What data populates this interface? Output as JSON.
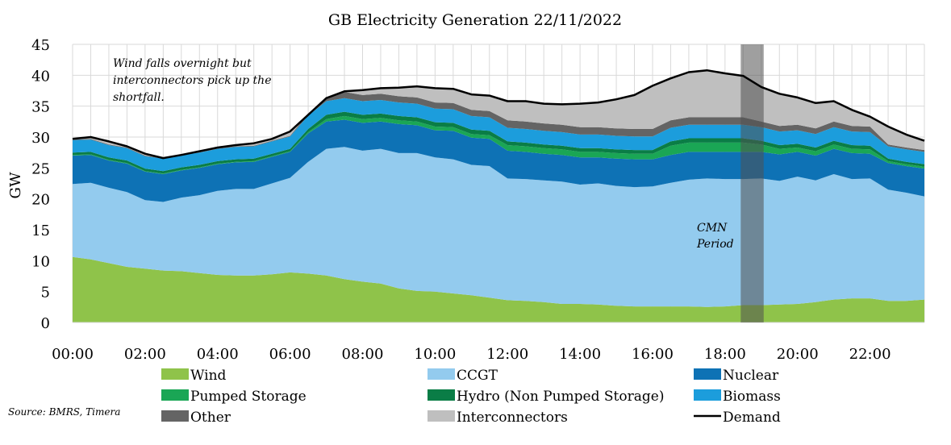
{
  "chart_data": {
    "type": "area",
    "stacked": true,
    "title": "GB Electricity Generation 22/11/2022",
    "xlabel": "",
    "ylabel": "GW",
    "ylim": [
      0,
      45
    ],
    "yticks": [
      0,
      5,
      10,
      15,
      20,
      25,
      30,
      35,
      40,
      45
    ],
    "xticks": [
      "00:00",
      "02:00",
      "04:00",
      "06:00",
      "08:00",
      "10:00",
      "12:00",
      "14:00",
      "16:00",
      "18:00",
      "20:00",
      "22:00"
    ],
    "grid": true,
    "legend_position": "bottom",
    "x": [
      "00:00",
      "00:30",
      "01:00",
      "01:30",
      "02:00",
      "02:30",
      "03:00",
      "03:30",
      "04:00",
      "04:30",
      "05:00",
      "05:30",
      "06:00",
      "06:30",
      "07:00",
      "07:30",
      "08:00",
      "08:30",
      "09:00",
      "09:30",
      "10:00",
      "10:30",
      "11:00",
      "11:30",
      "12:00",
      "12:30",
      "13:00",
      "13:30",
      "14:00",
      "14:30",
      "15:00",
      "15:30",
      "16:00",
      "16:30",
      "17:00",
      "17:30",
      "18:00",
      "18:30",
      "19:00",
      "19:30",
      "20:00",
      "20:30",
      "21:00",
      "21:30",
      "22:00",
      "22:30",
      "23:00",
      "23:30"
    ],
    "series": [
      {
        "name": "Wind",
        "color": "#8fc34a",
        "values": [
          10.6,
          10.2,
          9.6,
          9.0,
          8.7,
          8.4,
          8.3,
          8.0,
          7.7,
          7.6,
          7.6,
          7.8,
          8.1,
          7.9,
          7.6,
          7.0,
          6.6,
          6.3,
          5.5,
          5.1,
          5.0,
          4.7,
          4.4,
          4.0,
          3.6,
          3.5,
          3.3,
          3.0,
          3.0,
          2.9,
          2.7,
          2.6,
          2.6,
          2.6,
          2.6,
          2.5,
          2.6,
          2.8,
          2.8,
          2.9,
          3.0,
          3.3,
          3.7,
          3.9,
          3.9,
          3.5,
          3.5,
          3.7
        ]
      },
      {
        "name": "CCGT",
        "color": "#93cbee",
        "values": [
          11.8,
          12.4,
          12.2,
          12.1,
          11.1,
          11.1,
          11.9,
          12.6,
          13.6,
          14.0,
          14.0,
          14.7,
          15.3,
          18.1,
          20.5,
          21.4,
          21.2,
          21.8,
          21.9,
          22.3,
          21.7,
          21.7,
          21.1,
          21.3,
          19.7,
          19.7,
          19.7,
          19.8,
          19.3,
          19.6,
          19.4,
          19.3,
          19.4,
          20.0,
          20.5,
          20.8,
          20.6,
          20.4,
          20.5,
          20.0,
          20.6,
          19.7,
          20.3,
          19.3,
          19.4,
          18.0,
          17.5,
          16.7
        ]
      },
      {
        "name": "Nuclear",
        "color": "#0e72b5",
        "values": [
          4.6,
          4.5,
          4.4,
          4.6,
          4.6,
          4.5,
          4.4,
          4.4,
          4.3,
          4.3,
          4.4,
          4.3,
          4.2,
          4.6,
          4.4,
          4.4,
          4.5,
          4.4,
          4.7,
          4.5,
          4.4,
          4.6,
          4.4,
          4.4,
          4.5,
          4.4,
          4.3,
          4.3,
          4.4,
          4.2,
          4.4,
          4.5,
          4.4,
          4.5,
          4.5,
          4.3,
          4.4,
          4.4,
          4.3,
          4.3,
          4.0,
          4.0,
          4.1,
          4.2,
          4.0,
          4.3,
          4.3,
          4.5
        ]
      },
      {
        "name": "Pumped Storage",
        "color": "#1aa655",
        "values": [
          0.1,
          0.1,
          0.1,
          0.1,
          0.1,
          0.1,
          0.1,
          0.1,
          0.1,
          0.1,
          0.1,
          0.1,
          0.1,
          0.2,
          0.4,
          0.6,
          0.6,
          0.6,
          0.6,
          0.6,
          0.6,
          0.6,
          0.6,
          0.6,
          0.9,
          0.9,
          0.9,
          0.9,
          0.9,
          0.9,
          0.9,
          0.9,
          0.9,
          1.5,
          1.5,
          1.5,
          1.5,
          1.5,
          1.2,
          0.9,
          0.7,
          0.7,
          0.7,
          0.7,
          0.7,
          0.3,
          0.3,
          0.3
        ]
      },
      {
        "name": "Hydro (Non Pumped Storage)",
        "color": "#0a7d46",
        "values": [
          0.4,
          0.4,
          0.4,
          0.4,
          0.4,
          0.4,
          0.4,
          0.4,
          0.4,
          0.4,
          0.4,
          0.4,
          0.4,
          0.5,
          0.7,
          0.7,
          0.7,
          0.7,
          0.7,
          0.7,
          0.7,
          0.7,
          0.7,
          0.7,
          0.6,
          0.6,
          0.6,
          0.6,
          0.6,
          0.6,
          0.6,
          0.6,
          0.6,
          0.7,
          0.7,
          0.7,
          0.7,
          0.7,
          0.6,
          0.6,
          0.6,
          0.6,
          0.6,
          0.6,
          0.6,
          0.4,
          0.4,
          0.4
        ]
      },
      {
        "name": "Biomass",
        "color": "#1c9ddc",
        "values": [
          2.0,
          2.0,
          2.0,
          2.0,
          2.0,
          2.0,
          2.0,
          2.0,
          2.0,
          2.0,
          2.0,
          2.0,
          2.0,
          2.2,
          2.2,
          2.2,
          2.2,
          2.2,
          2.2,
          2.2,
          2.2,
          2.2,
          2.2,
          2.2,
          2.2,
          2.2,
          2.2,
          2.2,
          2.2,
          2.2,
          2.2,
          2.2,
          2.2,
          2.2,
          2.2,
          2.2,
          2.2,
          2.2,
          2.2,
          2.2,
          2.2,
          2.2,
          2.2,
          2.2,
          2.2,
          2.0,
          2.0,
          2.0
        ]
      },
      {
        "name": "Other",
        "color": "#646464",
        "values": [
          0.1,
          0.1,
          0.1,
          0.1,
          0.1,
          0.1,
          0.1,
          0.1,
          0.1,
          0.1,
          0.1,
          0.1,
          0.1,
          0.3,
          0.6,
          1.0,
          1.0,
          1.0,
          1.0,
          1.0,
          1.0,
          1.0,
          1.0,
          1.0,
          1.2,
          1.2,
          1.2,
          1.2,
          1.2,
          1.2,
          1.2,
          1.2,
          1.2,
          1.2,
          1.2,
          1.2,
          1.2,
          1.2,
          0.9,
          0.9,
          0.9,
          0.9,
          0.9,
          0.9,
          0.9,
          0.3,
          0.3,
          0.3
        ]
      },
      {
        "name": "Interconnectors",
        "color": "#bfbfbf",
        "values": [
          0.1,
          0.3,
          0.5,
          0.2,
          0.3,
          0.0,
          0.0,
          0.1,
          0.1,
          0.2,
          0.4,
          0.3,
          0.7,
          0.0,
          0.0,
          0.1,
          0.8,
          0.9,
          1.4,
          1.8,
          2.3,
          2.3,
          2.5,
          2.5,
          3.1,
          3.3,
          3.2,
          3.3,
          3.8,
          4.0,
          4.7,
          5.5,
          7.0,
          6.8,
          7.3,
          7.6,
          7.1,
          6.7,
          5.6,
          5.2,
          4.4,
          4.1,
          3.3,
          2.6,
          1.6,
          2.9,
          2.1,
          1.5
        ]
      }
    ],
    "line_series": {
      "name": "Demand",
      "color": "#000000",
      "values": [
        29.7,
        30.0,
        29.3,
        28.5,
        27.3,
        26.6,
        27.1,
        27.7,
        28.3,
        28.7,
        29.0,
        29.7,
        30.9,
        33.6,
        36.3,
        37.4,
        37.6,
        37.9,
        38.0,
        38.2,
        37.9,
        37.8,
        36.9,
        36.7,
        35.8,
        35.8,
        35.4,
        35.3,
        35.4,
        35.6,
        36.1,
        36.8,
        38.3,
        39.5,
        40.5,
        40.8,
        40.3,
        39.9,
        38.1,
        37.0,
        36.4,
        35.5,
        35.8,
        34.4,
        33.3,
        31.7,
        30.4,
        29.4
      ]
    },
    "highlight_band": {
      "label_line1": "CMN",
      "label_line2": "Period",
      "from": "18:30",
      "to": "19:00",
      "color": "#505050"
    },
    "annotations": {
      "line1": "Wind falls overnight but",
      "line2": "interconnectors pick up the",
      "line3": "shortfall."
    },
    "source": "Source: BMRS, Timera"
  }
}
